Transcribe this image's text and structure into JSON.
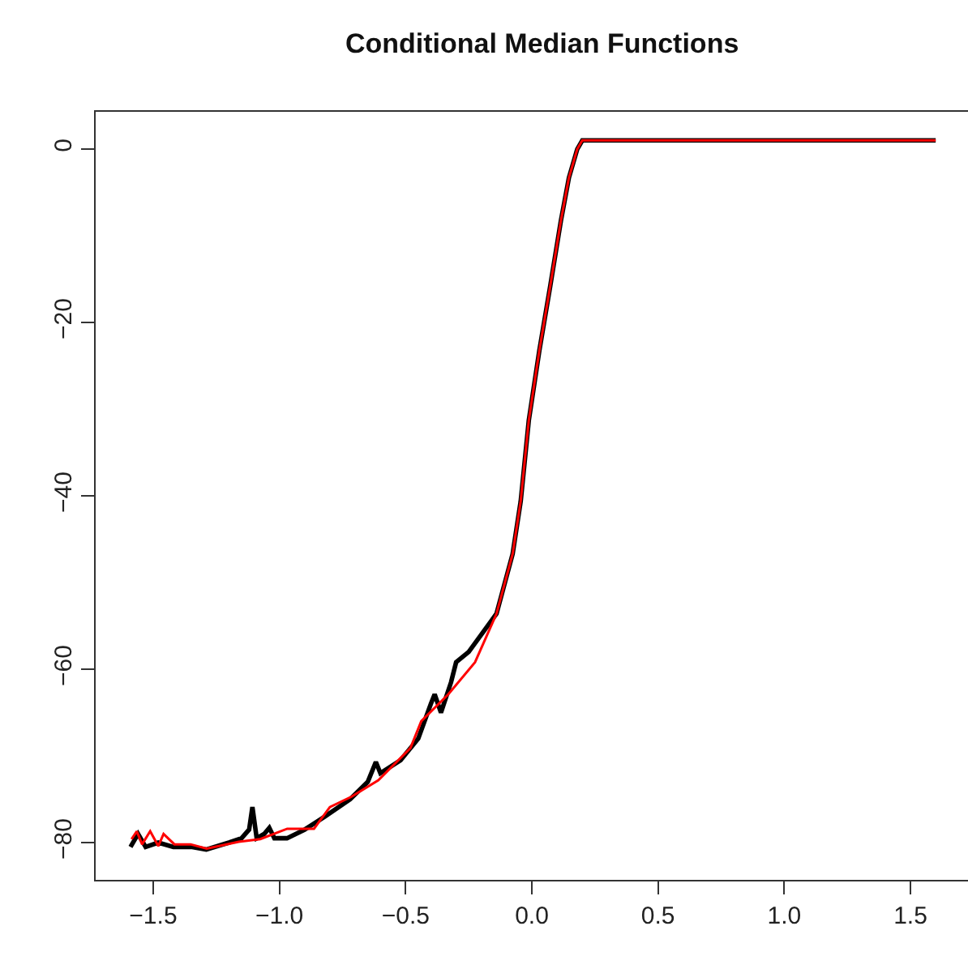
{
  "chart_data": {
    "type": "line",
    "title": "Conditional Median Functions",
    "xlim": [
      -1.728,
      1.728
    ],
    "ylim": [
      -84.3,
      4.3
    ],
    "xticks": [
      {
        "value": -1.5,
        "label": "−1.5"
      },
      {
        "value": -1,
        "label": "−1.0"
      },
      {
        "value": -0.5,
        "label": "−0.5"
      },
      {
        "value": 0,
        "label": "0.0"
      },
      {
        "value": 0.5,
        "label": "0.5"
      },
      {
        "value": 1,
        "label": "1.0"
      },
      {
        "value": 1.5,
        "label": "1.5"
      }
    ],
    "yticks": [
      {
        "value": -80,
        "label": "−80"
      },
      {
        "value": -60,
        "label": "−60"
      },
      {
        "value": -40,
        "label": "−40"
      },
      {
        "value": -20,
        "label": "−20"
      },
      0
    ],
    "marker": "none",
    "line_style": "solid",
    "series": [
      {
        "color": "#000000",
        "x": [
          -1.59,
          -1.56,
          -1.53,
          -1.48,
          -1.42,
          -1.35,
          -1.29,
          -1.2,
          -1.15,
          -1.12,
          -1.107,
          -1.09,
          -1.06,
          -1.04,
          -1.02,
          -0.97,
          -0.9,
          -0.82,
          -0.72,
          -0.65,
          -0.618,
          -0.6,
          -0.52,
          -0.45,
          -0.4,
          -0.385,
          -0.36,
          -0.32,
          -0.3,
          -0.25,
          -0.14,
          -0.076,
          -0.044,
          -0.012,
          0.03,
          0.073,
          0.115,
          0.147,
          0.18,
          0.2,
          1.6
        ],
        "values": [
          -80.5,
          -79,
          -80.5,
          -80,
          -80.5,
          -80.5,
          -80.8,
          -80,
          -79.5,
          -78.5,
          -75.9,
          -79.5,
          -79,
          -78.3,
          -79.5,
          -79.5,
          -78.5,
          -77,
          -75,
          -73,
          -70.7,
          -72,
          -70.5,
          -68,
          -64,
          -62.9,
          -65,
          -61.5,
          -59.2,
          -58,
          -53.6,
          -46.7,
          -40.6,
          -31.3,
          -23.2,
          -15.8,
          -8.3,
          -3.3,
          0,
          1,
          1
        ]
      },
      {
        "color": "#ff0000",
        "x": [
          -1.586,
          -1.565,
          -1.544,
          -1.512,
          -1.48,
          -1.459,
          -1.416,
          -1.352,
          -1.288,
          -1.161,
          -1.076,
          -0.969,
          -0.863,
          -0.8,
          -0.714,
          -0.608,
          -0.481,
          -0.438,
          -0.331,
          -0.225,
          -0.14,
          -0.076,
          -0.044,
          -0.012,
          0.03,
          0.073,
          0.115,
          0.147,
          0.18,
          0.2,
          1.6
        ],
        "values": [
          -79.6,
          -78.7,
          -80.2,
          -78.7,
          -80.4,
          -79,
          -80.2,
          -80.2,
          -80.7,
          -79.9,
          -79.6,
          -78.4,
          -78.4,
          -75.9,
          -74.7,
          -72.8,
          -69.1,
          -66,
          -62.9,
          -59.2,
          -53.6,
          -46.7,
          -40.6,
          -31.3,
          -23.2,
          -15.8,
          -8.3,
          -3.3,
          0,
          1,
          1
        ]
      }
    ]
  }
}
